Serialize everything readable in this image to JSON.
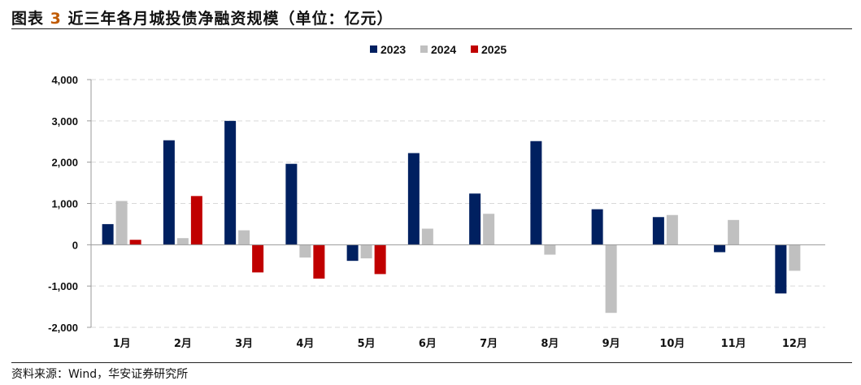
{
  "header": {
    "title_prefix": "图表",
    "title_num": "3",
    "title_text": "近三年各月城投债净融资规模（单位：亿元）"
  },
  "footer": {
    "source": "资料来源：Wind，华安证券研究所"
  },
  "chart_data": {
    "type": "bar",
    "categories": [
      "1月",
      "2月",
      "3月",
      "4月",
      "5月",
      "6月",
      "7月",
      "8月",
      "9月",
      "10月",
      "11月",
      "12月"
    ],
    "series": [
      {
        "name": "2023",
        "color": "#002060",
        "values": [
          500,
          2530,
          3000,
          1960,
          -390,
          2220,
          1240,
          2510,
          860,
          670,
          -180,
          -1180
        ]
      },
      {
        "name": "2024",
        "color": "#c0c0c0",
        "values": [
          1060,
          160,
          350,
          -310,
          -330,
          390,
          750,
          -240,
          -1650,
          720,
          600,
          -630
        ]
      },
      {
        "name": "2025",
        "color": "#c00000",
        "values": [
          120,
          1180,
          -670,
          -820,
          -710,
          null,
          null,
          null,
          null,
          null,
          null,
          null
        ]
      }
    ],
    "yticks": [
      "4,000",
      "3,000",
      "2,000",
      "1,000",
      "0",
      "-1,000",
      "-2,000"
    ],
    "ylim": [
      -2000,
      4000
    ],
    "grid": true,
    "legend": "top-center"
  }
}
